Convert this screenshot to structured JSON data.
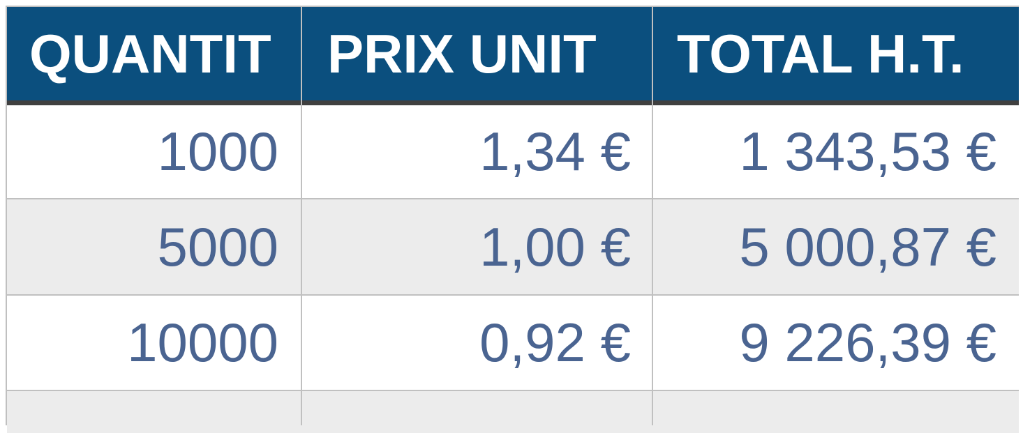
{
  "table": {
    "headers": [
      "QUANTIT",
      "PRIX UNIT",
      "TOTAL H.T."
    ],
    "rows": [
      [
        "1000",
        "1,34 €",
        "1 343,53 €"
      ],
      [
        "5000",
        "1,00 €",
        "5 000,87 €"
      ],
      [
        "10000",
        "0,92 €",
        "9 226,39 €"
      ]
    ]
  },
  "colors": {
    "header_bg": "#0b4f7e",
    "header_text": "#ffffff",
    "cell_text": "#4a6491",
    "alt_row_bg": "#ececec"
  }
}
